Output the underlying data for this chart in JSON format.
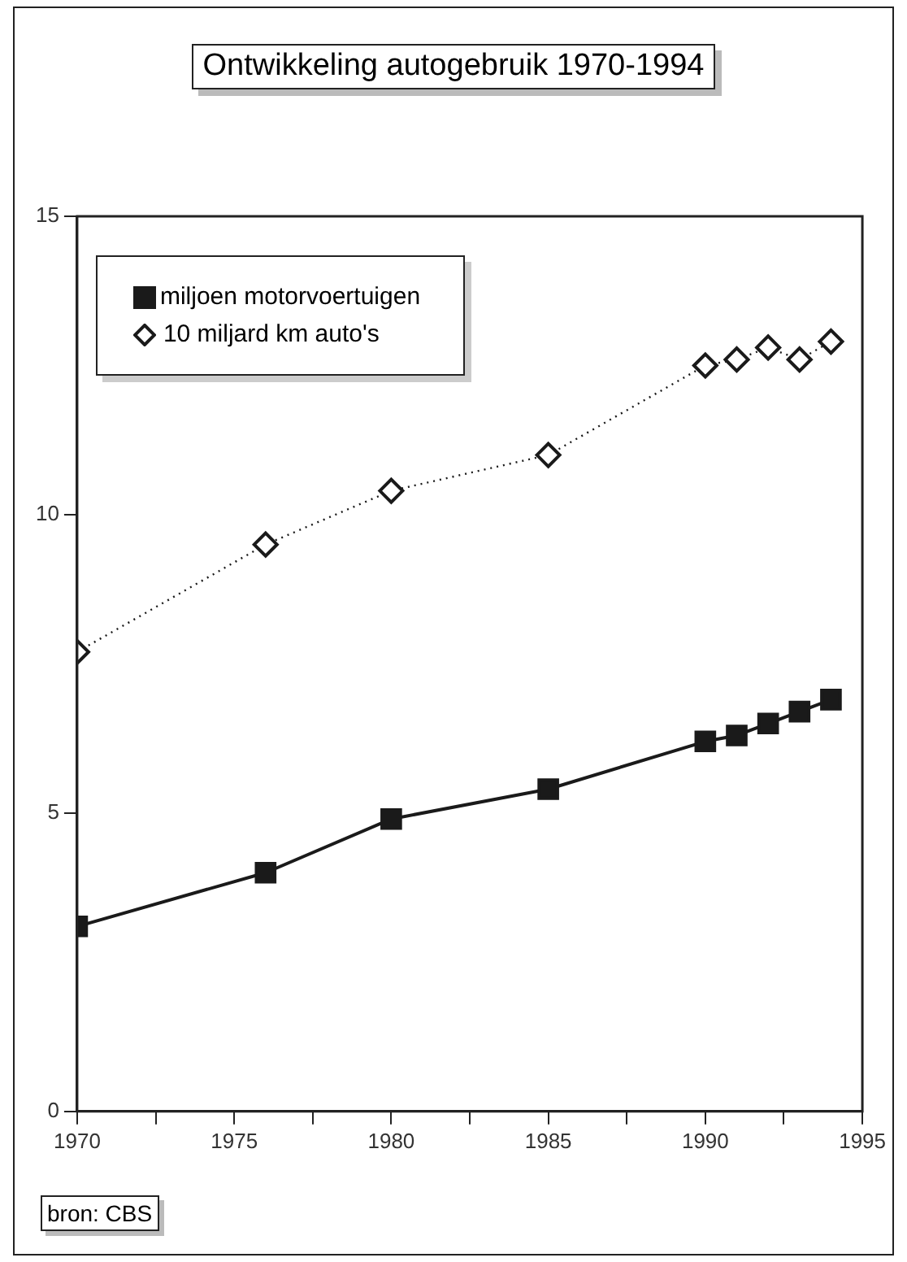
{
  "chart_data": {
    "type": "line",
    "title": "Ontwikkeling autogebruik 1970-1994",
    "x": [
      1970,
      1976,
      1980,
      1985,
      1990,
      1991,
      1992,
      1993,
      1994
    ],
    "series": [
      {
        "name": "miljoen motorvoertuigen",
        "color": "#1a1a1a",
        "marker": "square",
        "line_style": "solid",
        "values": [
          3.1,
          4.0,
          4.9,
          5.4,
          6.2,
          6.3,
          6.5,
          6.7,
          6.9
        ]
      },
      {
        "name": "10 miljard km auto's",
        "color": "#1a1a1a",
        "marker": "diamond",
        "line_style": "dotted",
        "values": [
          7.7,
          9.5,
          10.4,
          11.0,
          12.5,
          12.6,
          12.8,
          12.6,
          12.9
        ]
      }
    ],
    "xlim": [
      1970,
      1995
    ],
    "xticks": [
      1970,
      {
        "value": 1972.5,
        "label": null
      },
      1975,
      {
        "value": 1977.5,
        "label": null
      },
      1980,
      {
        "value": 1982.5,
        "label": null
      },
      1985,
      {
        "value": 1987.5,
        "label": null
      },
      1990,
      {
        "value": 1992.5,
        "label": null
      },
      1995
    ],
    "ylim": [
      0,
      15
    ],
    "yticks": [
      0,
      5,
      10,
      15
    ],
    "grid": false,
    "legend": "top left",
    "annotations": [
      "bron: CBS"
    ]
  }
}
